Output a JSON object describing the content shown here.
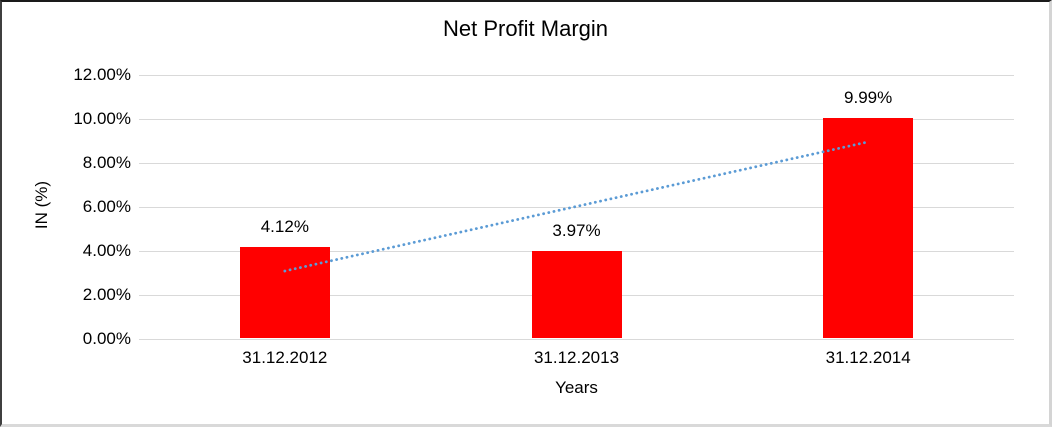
{
  "chart_data": {
    "type": "bar",
    "title": "Net Profit Margin",
    "xlabel": "Years",
    "ylabel": "IN (%)",
    "categories": [
      "31.12.2012",
      "31.12.2013",
      "31.12.2014"
    ],
    "values": [
      4.12,
      3.97,
      9.99
    ],
    "data_labels": [
      "4.12%",
      "3.97%",
      "9.99%"
    ],
    "y_ticks": [
      "12.00%",
      "10.00%",
      "8.00%",
      "6.00%",
      "4.00%",
      "2.00%",
      "0.00%"
    ],
    "ylim": [
      0,
      12
    ],
    "grid": "horizontal",
    "legend": "none",
    "bar_color": "#ff0000",
    "gridline_color": "#d9d9d9",
    "trendline": {
      "type": "linear",
      "style": "dotted",
      "color": "#5b9bd5",
      "start_value": 3.09,
      "end_value": 8.96
    }
  }
}
